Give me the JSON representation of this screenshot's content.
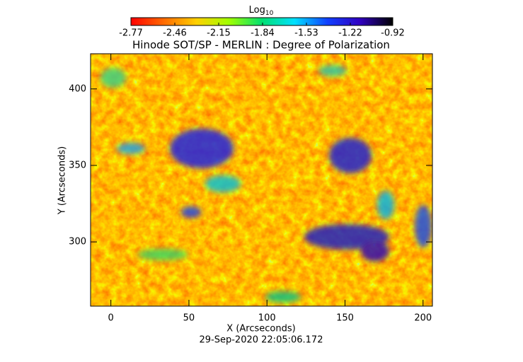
{
  "chart_data": {
    "type": "heatmap",
    "title": "Hinode SOT/SP - MERLIN : Degree of Polarization",
    "xlabel": "X (Arcseconds)",
    "ylabel": "Y (Arcseconds)",
    "footer": "29-Sep-2020 22:05:06.172",
    "xlim": [
      -13,
      206
    ],
    "xticks": [
      0,
      50,
      100,
      150,
      200
    ],
    "ylim": [
      258,
      423
    ],
    "yticks": [
      300,
      350,
      400
    ],
    "colorbar": {
      "label": {
        "text": "Log",
        "subscript": "10"
      },
      "clim": [
        -2.77,
        -0.92
      ],
      "ticks": [
        -2.77,
        -2.46,
        -2.15,
        -1.84,
        -1.53,
        -1.22,
        -0.92
      ],
      "colormap": [
        "#ff0000",
        "#ff6a00",
        "#ffd000",
        "#a0ff00",
        "#00e070",
        "#00e0ff",
        "#1040ff",
        "#3000c0",
        "#000000"
      ]
    }
  }
}
